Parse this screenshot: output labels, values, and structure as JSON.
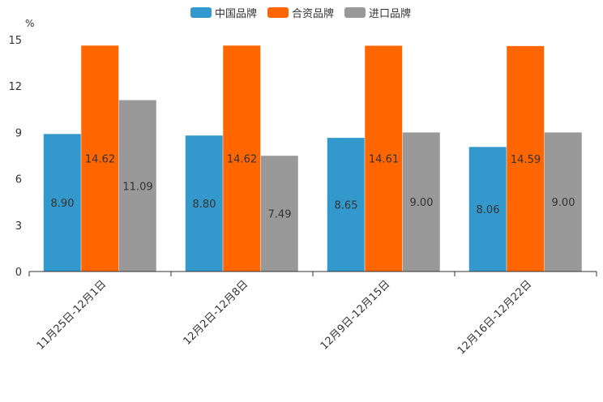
{
  "chart_data": {
    "type": "bar",
    "title": "",
    "ylabel": "%",
    "xlabel": "",
    "ylim": [
      0,
      15
    ],
    "yticks": [
      0,
      3,
      6,
      9,
      12,
      15
    ],
    "ytick_labels": [
      "0",
      "3",
      "6",
      "9",
      "12",
      "15"
    ],
    "legend_position": "top-center",
    "categories": [
      "11月25日-12月1日",
      "12月2日-12月8日",
      "12月9日-12月15日",
      "12月16日-12月22日"
    ],
    "series": [
      {
        "name": "中国品牌",
        "color": "#3399cc",
        "values": [
          8.9,
          8.8,
          8.65,
          8.06
        ],
        "labels": [
          "8.90",
          "8.80",
          "8.65",
          "8.06"
        ]
      },
      {
        "name": "合资品牌",
        "color": "#ff6600",
        "values": [
          14.62,
          14.62,
          14.61,
          14.59
        ],
        "labels": [
          "14.62",
          "14.62",
          "14.61",
          "14.59"
        ]
      },
      {
        "name": "进口品牌",
        "color": "#999999",
        "values": [
          11.09,
          7.49,
          9.0,
          9.0
        ],
        "labels": [
          "11.09",
          "7.49",
          "9.00",
          "9.00"
        ]
      }
    ]
  }
}
